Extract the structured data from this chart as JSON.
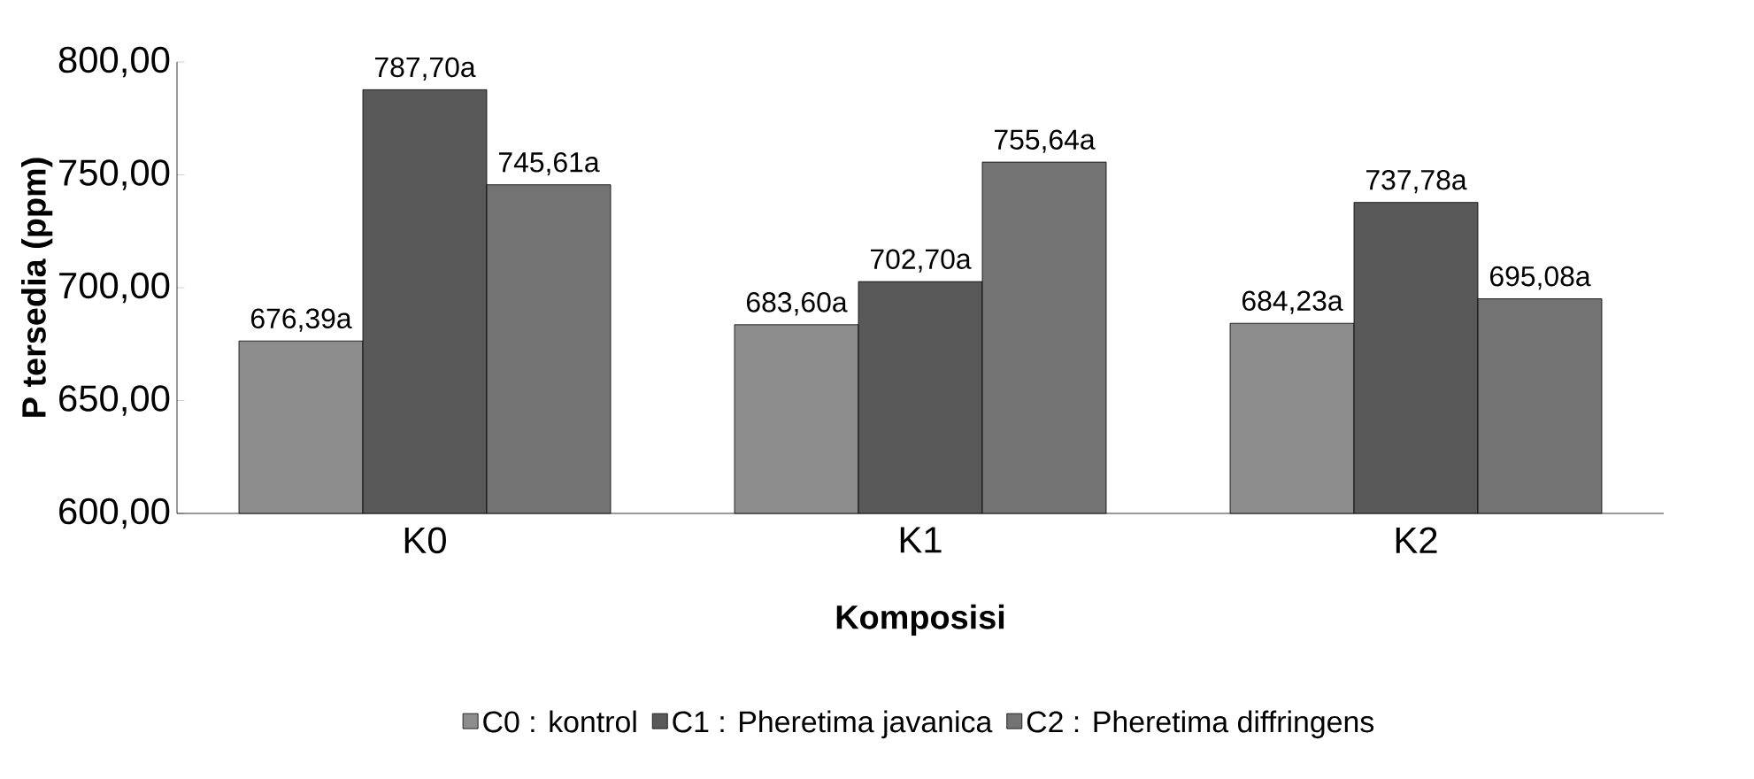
{
  "chart_data": {
    "type": "bar",
    "xlabel": "Komposisi",
    "ylabel": "P tersedia (ppm)",
    "categories": [
      "K0",
      "K1",
      "K2"
    ],
    "series": [
      {
        "name": "C0 : kontrol",
        "color": "#8c8c8c",
        "values": [
          676.39,
          683.6,
          684.23
        ],
        "value_labels": [
          "676,39a",
          "683,60a",
          "684,23a"
        ]
      },
      {
        "name": "C1 : Pheretima javanica",
        "color": "#595959",
        "values": [
          787.7,
          702.7,
          737.78
        ],
        "value_labels": [
          "787,70a",
          "702,70a",
          "737,78a"
        ]
      },
      {
        "name": "C2 : Pheretima diffringens",
        "color": "#737373",
        "values": [
          745.61,
          755.64,
          695.08
        ],
        "value_labels": [
          "745,61a",
          "755,64a",
          "695,08a"
        ]
      }
    ],
    "ylim": [
      600,
      800
    ],
    "yticks": [
      {
        "value": 600,
        "label": "600,00"
      },
      {
        "value": 650,
        "label": "650,00"
      },
      {
        "value": 700,
        "label": "700,00"
      },
      {
        "value": 750,
        "label": "750,00"
      },
      {
        "value": 800,
        "label": "800,00"
      }
    ],
    "legend": "bottom",
    "grid": false
  }
}
